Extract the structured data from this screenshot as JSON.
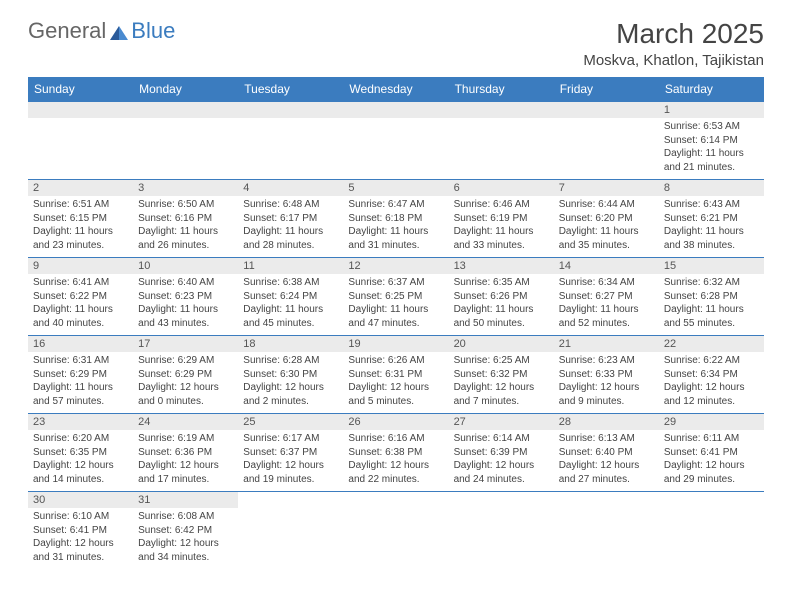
{
  "logo": {
    "text1": "General",
    "text2": "Blue",
    "color1": "#666666",
    "color2": "#3b7cbf"
  },
  "title": "March 2025",
  "location": "Moskva, Khatlon, Tajikistan",
  "day_headers": [
    "Sunday",
    "Monday",
    "Tuesday",
    "Wednesday",
    "Thursday",
    "Friday",
    "Saturday"
  ],
  "colors": {
    "header_bg": "#3b7cbf",
    "daynum_bg": "#ebebeb",
    "border": "#3b7cbf",
    "text": "#444444",
    "header_text": "#ffffff"
  },
  "weeks": [
    [
      {
        "day": "",
        "sunrise": "",
        "sunset": "",
        "daylight": ""
      },
      {
        "day": "",
        "sunrise": "",
        "sunset": "",
        "daylight": ""
      },
      {
        "day": "",
        "sunrise": "",
        "sunset": "",
        "daylight": ""
      },
      {
        "day": "",
        "sunrise": "",
        "sunset": "",
        "daylight": ""
      },
      {
        "day": "",
        "sunrise": "",
        "sunset": "",
        "daylight": ""
      },
      {
        "day": "",
        "sunrise": "",
        "sunset": "",
        "daylight": ""
      },
      {
        "day": "1",
        "sunrise": "Sunrise: 6:53 AM",
        "sunset": "Sunset: 6:14 PM",
        "daylight": "Daylight: 11 hours and 21 minutes."
      }
    ],
    [
      {
        "day": "2",
        "sunrise": "Sunrise: 6:51 AM",
        "sunset": "Sunset: 6:15 PM",
        "daylight": "Daylight: 11 hours and 23 minutes."
      },
      {
        "day": "3",
        "sunrise": "Sunrise: 6:50 AM",
        "sunset": "Sunset: 6:16 PM",
        "daylight": "Daylight: 11 hours and 26 minutes."
      },
      {
        "day": "4",
        "sunrise": "Sunrise: 6:48 AM",
        "sunset": "Sunset: 6:17 PM",
        "daylight": "Daylight: 11 hours and 28 minutes."
      },
      {
        "day": "5",
        "sunrise": "Sunrise: 6:47 AM",
        "sunset": "Sunset: 6:18 PM",
        "daylight": "Daylight: 11 hours and 31 minutes."
      },
      {
        "day": "6",
        "sunrise": "Sunrise: 6:46 AM",
        "sunset": "Sunset: 6:19 PM",
        "daylight": "Daylight: 11 hours and 33 minutes."
      },
      {
        "day": "7",
        "sunrise": "Sunrise: 6:44 AM",
        "sunset": "Sunset: 6:20 PM",
        "daylight": "Daylight: 11 hours and 35 minutes."
      },
      {
        "day": "8",
        "sunrise": "Sunrise: 6:43 AM",
        "sunset": "Sunset: 6:21 PM",
        "daylight": "Daylight: 11 hours and 38 minutes."
      }
    ],
    [
      {
        "day": "9",
        "sunrise": "Sunrise: 6:41 AM",
        "sunset": "Sunset: 6:22 PM",
        "daylight": "Daylight: 11 hours and 40 minutes."
      },
      {
        "day": "10",
        "sunrise": "Sunrise: 6:40 AM",
        "sunset": "Sunset: 6:23 PM",
        "daylight": "Daylight: 11 hours and 43 minutes."
      },
      {
        "day": "11",
        "sunrise": "Sunrise: 6:38 AM",
        "sunset": "Sunset: 6:24 PM",
        "daylight": "Daylight: 11 hours and 45 minutes."
      },
      {
        "day": "12",
        "sunrise": "Sunrise: 6:37 AM",
        "sunset": "Sunset: 6:25 PM",
        "daylight": "Daylight: 11 hours and 47 minutes."
      },
      {
        "day": "13",
        "sunrise": "Sunrise: 6:35 AM",
        "sunset": "Sunset: 6:26 PM",
        "daylight": "Daylight: 11 hours and 50 minutes."
      },
      {
        "day": "14",
        "sunrise": "Sunrise: 6:34 AM",
        "sunset": "Sunset: 6:27 PM",
        "daylight": "Daylight: 11 hours and 52 minutes."
      },
      {
        "day": "15",
        "sunrise": "Sunrise: 6:32 AM",
        "sunset": "Sunset: 6:28 PM",
        "daylight": "Daylight: 11 hours and 55 minutes."
      }
    ],
    [
      {
        "day": "16",
        "sunrise": "Sunrise: 6:31 AM",
        "sunset": "Sunset: 6:29 PM",
        "daylight": "Daylight: 11 hours and 57 minutes."
      },
      {
        "day": "17",
        "sunrise": "Sunrise: 6:29 AM",
        "sunset": "Sunset: 6:29 PM",
        "daylight": "Daylight: 12 hours and 0 minutes."
      },
      {
        "day": "18",
        "sunrise": "Sunrise: 6:28 AM",
        "sunset": "Sunset: 6:30 PM",
        "daylight": "Daylight: 12 hours and 2 minutes."
      },
      {
        "day": "19",
        "sunrise": "Sunrise: 6:26 AM",
        "sunset": "Sunset: 6:31 PM",
        "daylight": "Daylight: 12 hours and 5 minutes."
      },
      {
        "day": "20",
        "sunrise": "Sunrise: 6:25 AM",
        "sunset": "Sunset: 6:32 PM",
        "daylight": "Daylight: 12 hours and 7 minutes."
      },
      {
        "day": "21",
        "sunrise": "Sunrise: 6:23 AM",
        "sunset": "Sunset: 6:33 PM",
        "daylight": "Daylight: 12 hours and 9 minutes."
      },
      {
        "day": "22",
        "sunrise": "Sunrise: 6:22 AM",
        "sunset": "Sunset: 6:34 PM",
        "daylight": "Daylight: 12 hours and 12 minutes."
      }
    ],
    [
      {
        "day": "23",
        "sunrise": "Sunrise: 6:20 AM",
        "sunset": "Sunset: 6:35 PM",
        "daylight": "Daylight: 12 hours and 14 minutes."
      },
      {
        "day": "24",
        "sunrise": "Sunrise: 6:19 AM",
        "sunset": "Sunset: 6:36 PM",
        "daylight": "Daylight: 12 hours and 17 minutes."
      },
      {
        "day": "25",
        "sunrise": "Sunrise: 6:17 AM",
        "sunset": "Sunset: 6:37 PM",
        "daylight": "Daylight: 12 hours and 19 minutes."
      },
      {
        "day": "26",
        "sunrise": "Sunrise: 6:16 AM",
        "sunset": "Sunset: 6:38 PM",
        "daylight": "Daylight: 12 hours and 22 minutes."
      },
      {
        "day": "27",
        "sunrise": "Sunrise: 6:14 AM",
        "sunset": "Sunset: 6:39 PM",
        "daylight": "Daylight: 12 hours and 24 minutes."
      },
      {
        "day": "28",
        "sunrise": "Sunrise: 6:13 AM",
        "sunset": "Sunset: 6:40 PM",
        "daylight": "Daylight: 12 hours and 27 minutes."
      },
      {
        "day": "29",
        "sunrise": "Sunrise: 6:11 AM",
        "sunset": "Sunset: 6:41 PM",
        "daylight": "Daylight: 12 hours and 29 minutes."
      }
    ],
    [
      {
        "day": "30",
        "sunrise": "Sunrise: 6:10 AM",
        "sunset": "Sunset: 6:41 PM",
        "daylight": "Daylight: 12 hours and 31 minutes."
      },
      {
        "day": "31",
        "sunrise": "Sunrise: 6:08 AM",
        "sunset": "Sunset: 6:42 PM",
        "daylight": "Daylight: 12 hours and 34 minutes."
      },
      {
        "day": "",
        "sunrise": "",
        "sunset": "",
        "daylight": ""
      },
      {
        "day": "",
        "sunrise": "",
        "sunset": "",
        "daylight": ""
      },
      {
        "day": "",
        "sunrise": "",
        "sunset": "",
        "daylight": ""
      },
      {
        "day": "",
        "sunrise": "",
        "sunset": "",
        "daylight": ""
      },
      {
        "day": "",
        "sunrise": "",
        "sunset": "",
        "daylight": ""
      }
    ]
  ]
}
